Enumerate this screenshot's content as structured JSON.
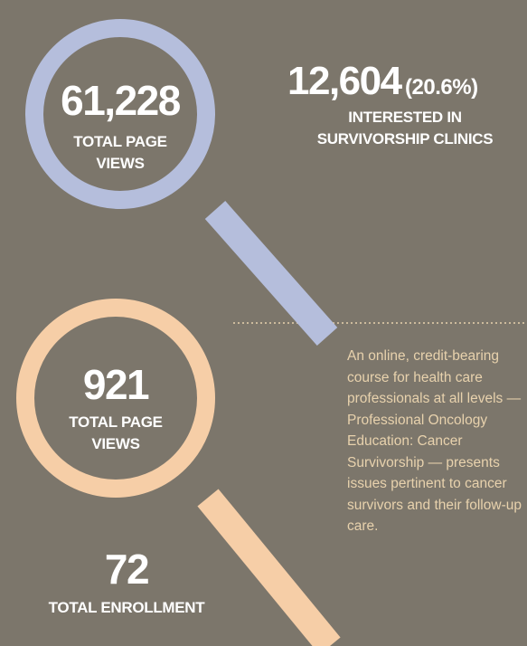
{
  "stats": [
    {
      "value": "61,228",
      "label_lines": [
        "TOTAL PAGE",
        "VIEWS"
      ]
    },
    {
      "value": "12,604",
      "percent": "(20.6%)",
      "label_lines": [
        "INTERESTED IN",
        "SURVIVORSHIP CLINICS"
      ]
    },
    {
      "value": "921",
      "label_lines": [
        "TOTAL PAGE",
        "VIEWS"
      ]
    },
    {
      "value": "72",
      "label_lines": [
        "TOTAL ENROLLMENT"
      ]
    }
  ],
  "description": "An online, credit-bearing course for health care professionals at all levels — Professional Oncology Education: Cancer Survivorship — presents issues pertinent to cancer survivors and their follow-up care."
}
